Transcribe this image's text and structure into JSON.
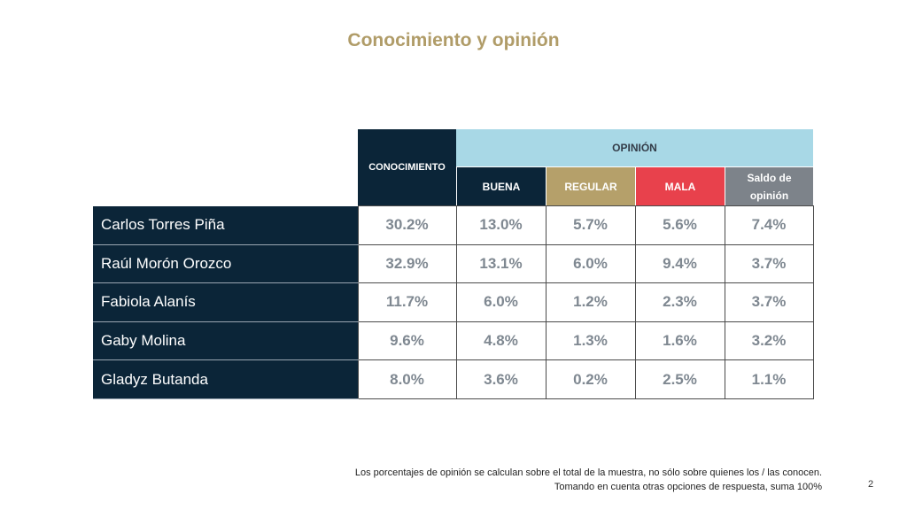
{
  "title": "Conocimiento y opinión",
  "header": {
    "conocimiento": "CONOCIMIENTO",
    "opinion": "OPINIÓN",
    "subcolumns": [
      {
        "label": "BUENA",
        "color": "#0b2538"
      },
      {
        "label": "REGULAR",
        "color": "#b5a06a"
      },
      {
        "label": "MALA",
        "color": "#e8414c"
      },
      {
        "label": "Saldo de opinión",
        "color": "#7d838a"
      }
    ]
  },
  "rows": [
    {
      "name": "Carlos Torres Piña",
      "values": [
        "30.2%",
        "13.0%",
        "5.7%",
        "5.6%",
        "7.4%"
      ]
    },
    {
      "name": "Raúl Morón Orozco",
      "values": [
        "32.9%",
        "13.1%",
        "6.0%",
        "9.4%",
        "3.7%"
      ]
    },
    {
      "name": "Fabiola Alanís",
      "values": [
        "11.7%",
        "6.0%",
        "1.2%",
        "2.3%",
        "3.7%"
      ]
    },
    {
      "name": "Gaby Molina",
      "values": [
        "9.6%",
        "4.8%",
        "1.3%",
        "1.6%",
        "3.2%"
      ]
    },
    {
      "name": "Gladyz Butanda",
      "values": [
        "8.0%",
        "3.6%",
        "0.2%",
        "2.5%",
        "1.1%"
      ]
    }
  ],
  "footnote": {
    "line1": "Los porcentajes de opinión se calculan sobre el total de la muestra, no sólo sobre quienes los / las conocen.",
    "line2": "Tomando en cuenta otras opciones de respuesta, suma 100%"
  },
  "page_number": "2",
  "colors": {
    "title": "#b09c68",
    "navy": "#0b2538",
    "opinion_header": "#a8d8e6",
    "value_text": "#7f8891"
  }
}
